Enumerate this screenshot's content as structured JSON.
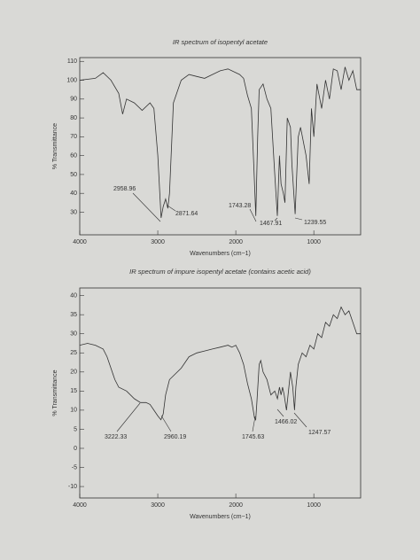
{
  "chart_data": [
    {
      "type": "line",
      "title": "IR spectrum of isopentyl acetate",
      "xlabel": "Wavenumbers (cm−1)",
      "ylabel": "% Transmittance",
      "xlim": [
        4000,
        400
      ],
      "ylim": [
        18,
        112
      ],
      "xticks": [
        4000,
        3000,
        2000,
        1000
      ],
      "yticks": [
        30,
        40,
        50,
        60,
        70,
        80,
        90,
        100,
        110
      ],
      "color": "#333333",
      "x": [
        4000,
        3800,
        3700,
        3600,
        3500,
        3450,
        3400,
        3300,
        3200,
        3100,
        3050,
        3000,
        2958,
        2930,
        2900,
        2871,
        2850,
        2800,
        2700,
        2600,
        2500,
        2400,
        2300,
        2200,
        2100,
        2000,
        1950,
        1900,
        1850,
        1800,
        1770,
        1743,
        1720,
        1700,
        1650,
        1600,
        1550,
        1500,
        1467,
        1440,
        1420,
        1390,
        1370,
        1340,
        1300,
        1280,
        1239,
        1200,
        1170,
        1100,
        1060,
        1030,
        1000,
        960,
        900,
        850,
        800,
        750,
        700,
        650,
        600,
        550,
        500,
        450,
        400
      ],
      "values": [
        100,
        101,
        104,
        100,
        93,
        82,
        90,
        88,
        84,
        88,
        85,
        60,
        27,
        33,
        37,
        32,
        40,
        88,
        100,
        103,
        102,
        101,
        103,
        105,
        106,
        104,
        103,
        101,
        92,
        85,
        55,
        28,
        70,
        95,
        98,
        90,
        85,
        50,
        28,
        60,
        45,
        40,
        35,
        80,
        75,
        55,
        29,
        70,
        75,
        60,
        45,
        85,
        70,
        98,
        85,
        100,
        90,
        106,
        105,
        95,
        107,
        100,
        105,
        95,
        95
      ],
      "annotations": [
        "2958.96",
        "2871.64",
        "1743.28",
        "1467.91",
        "1239.55"
      ]
    },
    {
      "type": "line",
      "title": "IR spectrum of impure isopentyl acetate (contains acetic acid)",
      "xlabel": "Wavenumbers (cm−1)",
      "ylabel": "% Transmittance",
      "xlim": [
        4000,
        400
      ],
      "ylim": [
        -13,
        42
      ],
      "xticks": [
        4000,
        3000,
        2000,
        1000
      ],
      "yticks": [
        -10,
        -5,
        0,
        5,
        10,
        15,
        20,
        25,
        30,
        35,
        40
      ],
      "color": "#333333",
      "x": [
        4000,
        3900,
        3800,
        3700,
        3650,
        3600,
        3550,
        3500,
        3400,
        3300,
        3222,
        3150,
        3100,
        3050,
        3000,
        2960,
        2930,
        2900,
        2850,
        2800,
        2700,
        2600,
        2500,
        2400,
        2300,
        2200,
        2100,
        2050,
        2000,
        1950,
        1900,
        1850,
        1800,
        1760,
        1745,
        1730,
        1700,
        1680,
        1650,
        1600,
        1550,
        1500,
        1466,
        1440,
        1420,
        1400,
        1380,
        1350,
        1300,
        1270,
        1247,
        1230,
        1200,
        1150,
        1100,
        1050,
        1000,
        950,
        900,
        850,
        800,
        750,
        700,
        650,
        600,
        550,
        500,
        450,
        400
      ],
      "values": [
        27,
        27.5,
        27,
        26,
        24,
        21,
        18,
        16,
        15,
        13,
        12,
        12,
        11.5,
        10,
        8.5,
        7.5,
        9,
        14,
        18,
        19,
        21,
        24,
        25,
        25.5,
        26,
        26.5,
        27,
        26.5,
        27,
        25,
        22,
        17,
        13,
        8,
        7.5,
        12,
        22,
        23,
        20,
        18,
        14,
        15,
        13,
        16,
        14,
        16,
        14,
        10,
        20,
        16,
        10,
        16,
        22,
        25,
        24,
        27,
        26,
        30,
        29,
        33,
        32,
        35,
        34,
        37,
        35,
        36,
        33,
        30,
        30
      ],
      "annotations": [
        "3222.33",
        "2960.19",
        "1745.63",
        "1466.02",
        "1247.57"
      ]
    }
  ]
}
